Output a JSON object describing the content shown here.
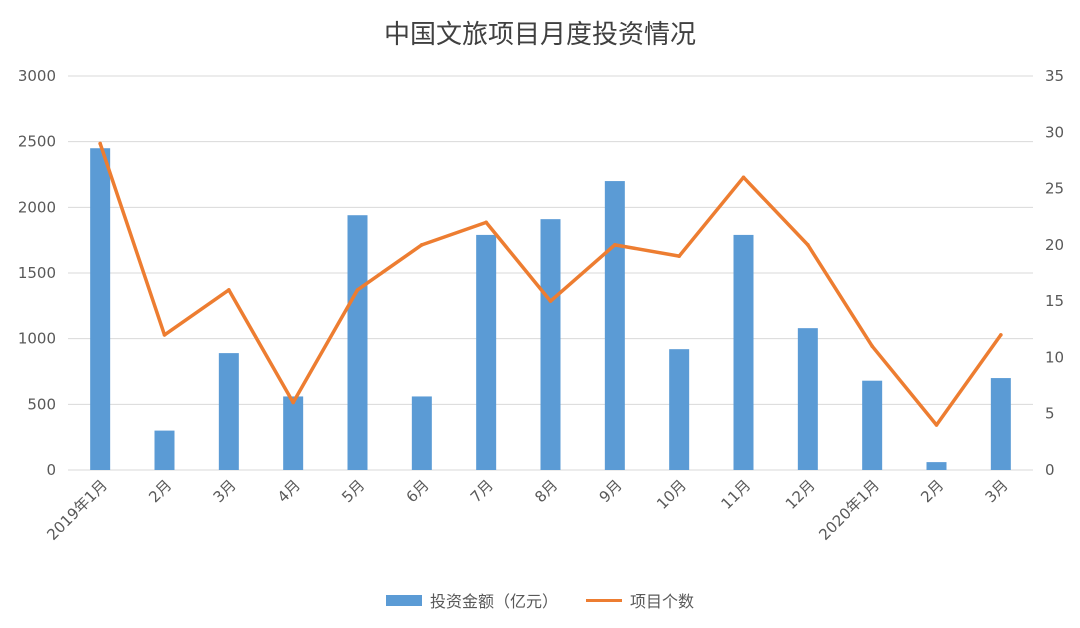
{
  "chart_data": {
    "type": "bar",
    "title": "中国文旅项目月度投资情况",
    "categories": [
      "2019年1月",
      "2月",
      "3月",
      "4月",
      "5月",
      "6月",
      "7月",
      "8月",
      "9月",
      "10月",
      "11月",
      "12月",
      "2020年1月",
      "2月",
      "3月"
    ],
    "series": [
      {
        "name": "投资金额（亿元）",
        "type": "bar",
        "axis": "left",
        "color": "#5b9bd5",
        "values": [
          2450,
          300,
          890,
          560,
          1940,
          560,
          1790,
          1910,
          2200,
          920,
          1790,
          1080,
          680,
          60,
          700
        ]
      },
      {
        "name": "项目个数",
        "type": "line",
        "axis": "right",
        "color": "#ed7d31",
        "values": [
          29,
          12,
          16,
          6,
          16,
          20,
          22,
          15,
          20,
          19,
          26,
          20,
          11,
          4,
          12
        ]
      }
    ],
    "y_left": {
      "min": 0,
      "max": 3000,
      "ticks": [
        "0",
        "500",
        "1000",
        "1500",
        "2000",
        "2500",
        "3000"
      ]
    },
    "y_right": {
      "min": 0,
      "max": 35,
      "ticks": [
        "0",
        "5",
        "10",
        "15",
        "20",
        "25",
        "30",
        "35"
      ]
    },
    "grid": true,
    "legend_position": "bottom"
  }
}
